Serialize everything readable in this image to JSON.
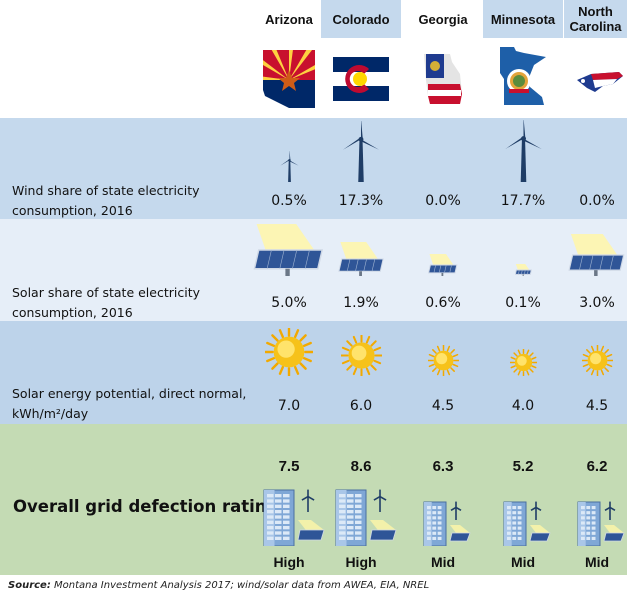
{
  "chart_data": {
    "type": "table",
    "states": [
      "Arizona",
      "Colorado",
      "Georgia",
      "Minnesota",
      "North Carolina"
    ],
    "rows": {
      "wind": {
        "label_line1": "Wind share of state electricity",
        "label_line2": "consumption, 2016",
        "values": [
          0.5,
          17.3,
          0.0,
          17.7,
          0.0
        ],
        "display": [
          "0.5%",
          "17.3%",
          "0.0%",
          "17.7%",
          "0.0%"
        ]
      },
      "solar": {
        "label_line1": "Solar share of state electricity",
        "label_line2": "consumption, 2016",
        "values": [
          5.0,
          1.9,
          0.6,
          0.1,
          3.0
        ],
        "display": [
          "5.0%",
          "1.9%",
          "0.6%",
          "0.1%",
          "3.0%"
        ]
      },
      "potential": {
        "label_line1": "Solar energy potential, direct normal,",
        "label_line2": "kWh/m²/day",
        "values": [
          7.0,
          6.0,
          4.5,
          4.0,
          4.5
        ],
        "display": [
          "7.0",
          "6.0",
          "4.5",
          "4.0",
          "4.5"
        ]
      },
      "rating": {
        "label": "Overall grid defection rating",
        "values": [
          7.5,
          8.6,
          6.3,
          5.2,
          6.2
        ],
        "display": [
          "7.5",
          "8.6",
          "6.3",
          "5.2",
          "6.2"
        ],
        "grades": [
          "High",
          "High",
          "Mid",
          "Mid",
          "Mid"
        ]
      }
    },
    "source_label": "Source:",
    "source_text": "Montana Investment Analysis 2017; wind/solar data from AWEA, EIA, NREL"
  },
  "colors": {
    "wind_band": "#c5d9ed",
    "solar_band": "#e6eef8",
    "potential_band": "#bdd3ea",
    "rating_band": "#c4dbb4",
    "turbine": "#1f3d66",
    "sun": "#f6c21a",
    "panel": "#2f5597"
  },
  "icons": {
    "wind": "wind-turbine-icon",
    "solar": "solar-panel-icon",
    "potential": "sun-icon",
    "rating": "building-with-renewables-icon",
    "flags": [
      "arizona-flag-icon",
      "colorado-flag-icon",
      "georgia-flag-icon",
      "minnesota-flag-icon",
      "north-carolina-flag-icon"
    ]
  }
}
